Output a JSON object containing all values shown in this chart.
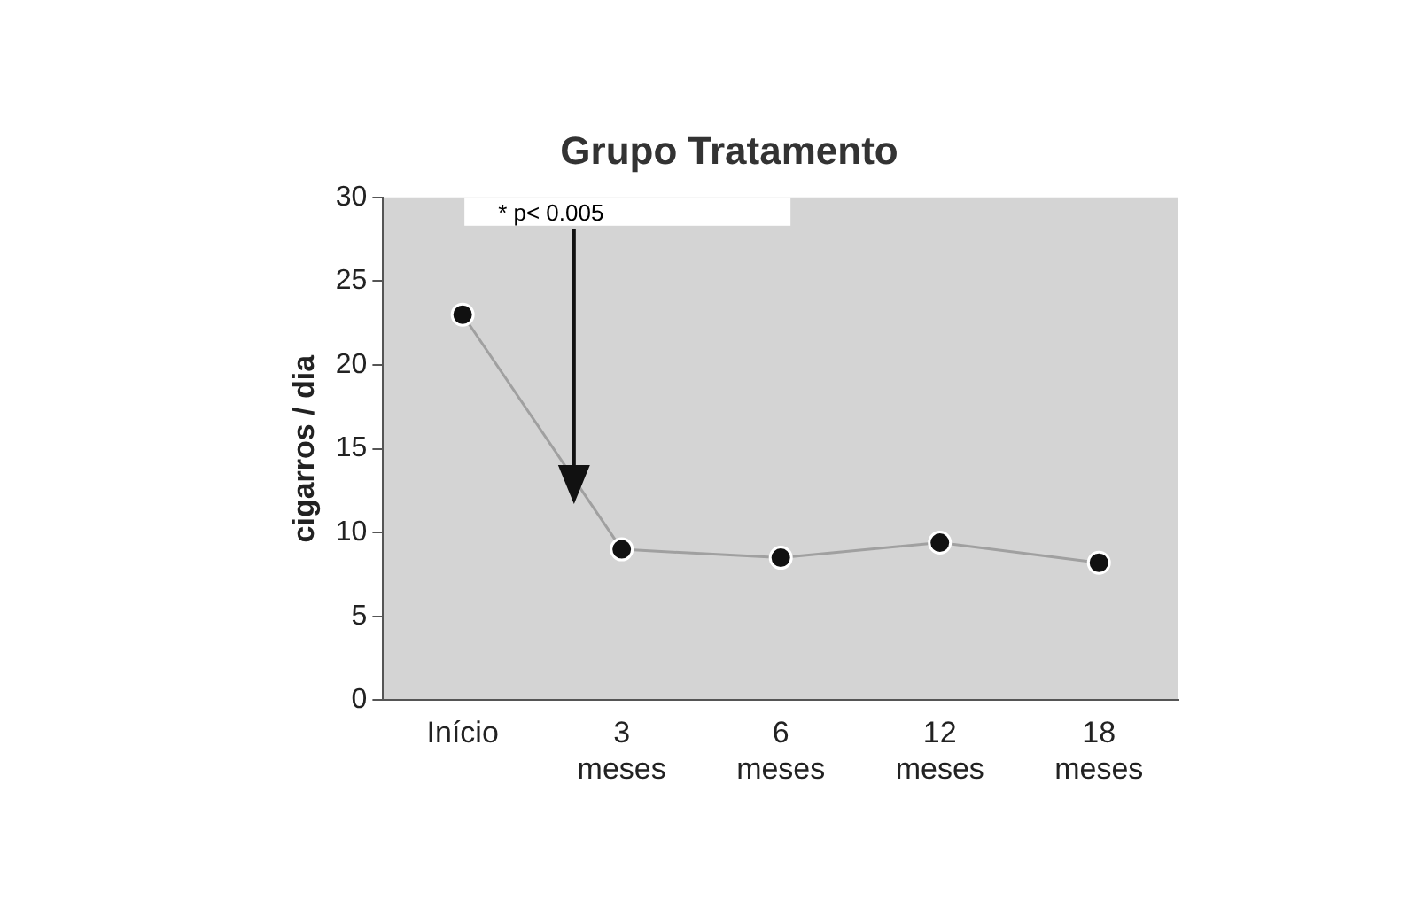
{
  "chart_data": {
    "type": "line",
    "title": "Grupo Tratamento",
    "ylabel": "cigarros / dia",
    "categories": [
      "Início",
      "3 meses",
      "6 meses",
      "12 meses",
      "18 meses"
    ],
    "series": [
      {
        "color": "#a0a0a0",
        "values": [
          23,
          9,
          8.5,
          9.4,
          8.2
        ]
      }
    ],
    "ylim": [
      0,
      30
    ],
    "yticks": [
      0,
      5,
      10,
      15,
      20,
      25,
      30
    ],
    "grid": false,
    "legend": false,
    "marker": "circle",
    "annotations": [
      "* p< 0.005"
    ]
  }
}
